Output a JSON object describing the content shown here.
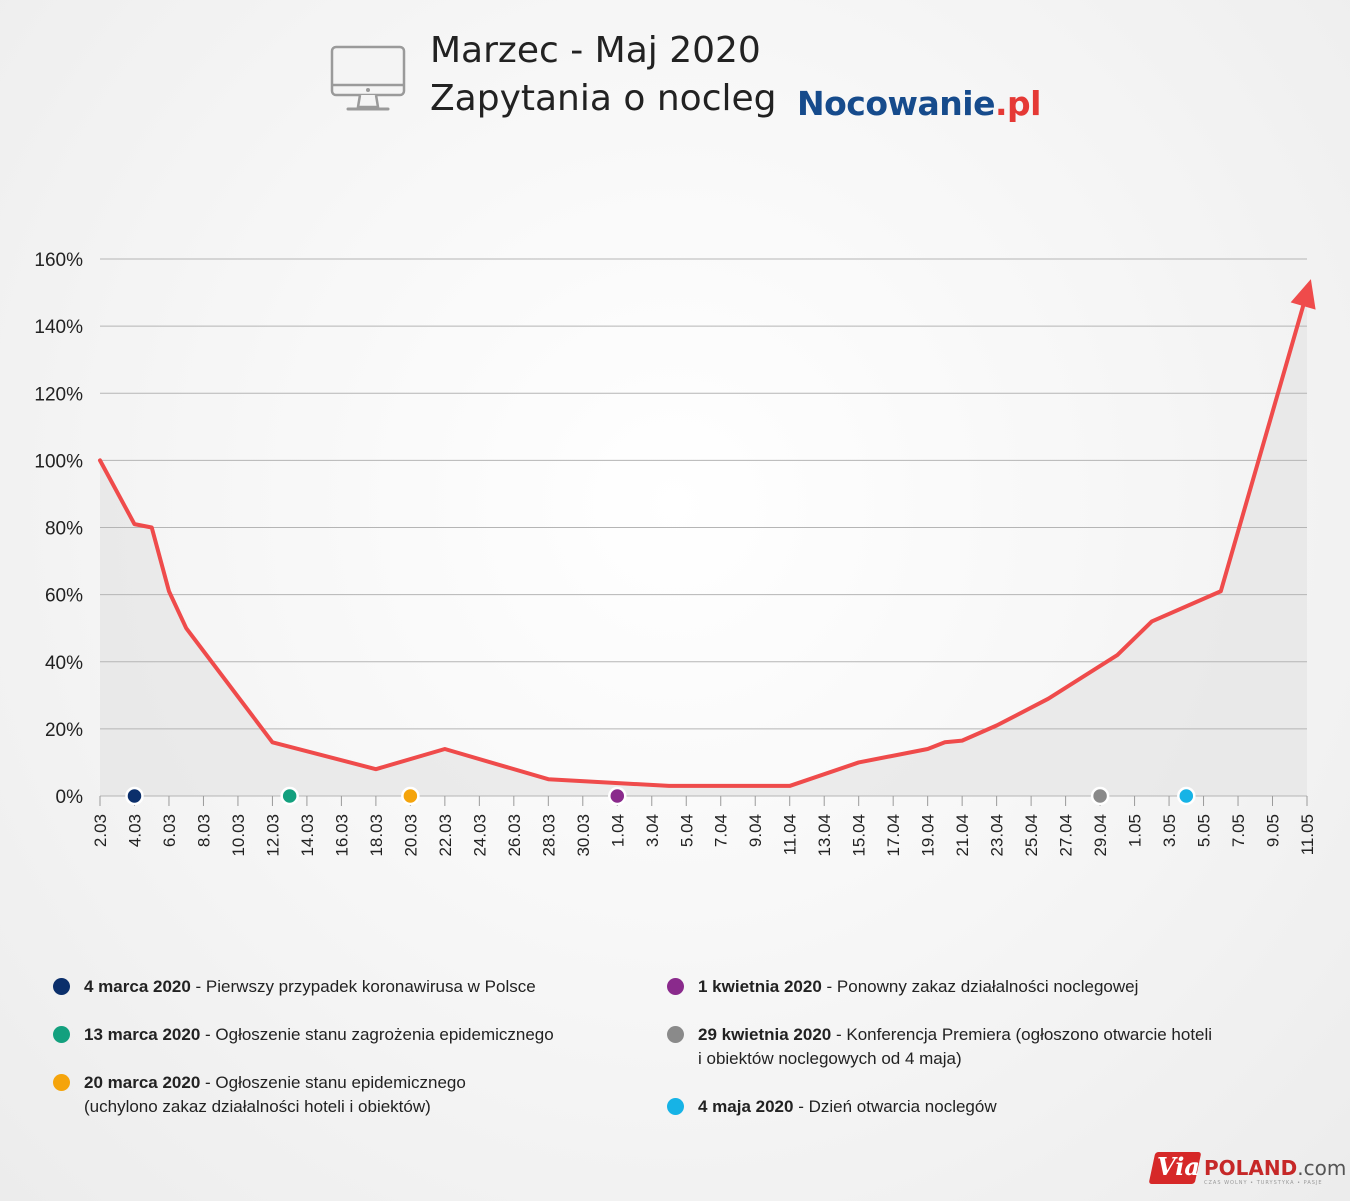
{
  "header": {
    "title_line1": "Marzec - Maj 2020",
    "title_line2": "Zapytania o nocleg",
    "brand_main": "Nocowanie",
    "brand_tld": ".pl",
    "icon": "monitor-icon"
  },
  "colors": {
    "line": "#ef4b4b",
    "grid": "#b5b5b5",
    "area": "#e6e6e6"
  },
  "chart_data": {
    "type": "line",
    "title": "Zapytania o nocleg",
    "x_tick_labels": [
      "2.03",
      "4.03",
      "6.03",
      "8.03",
      "10.03",
      "12.03",
      "14.03",
      "16.03",
      "18.03",
      "20.03",
      "22.03",
      "24.03",
      "26.03",
      "28.03",
      "30.03",
      "1.04",
      "3.04",
      "5.04",
      "7.04",
      "9.04",
      "11.04",
      "13.04",
      "15.04",
      "17.04",
      "19.04",
      "21.04",
      "23.04",
      "25.04",
      "27.04",
      "29.04",
      "1.05",
      "3.05",
      "5.05",
      "7.05",
      "9.05",
      "11.05"
    ],
    "y_ticks": [
      0,
      20,
      40,
      60,
      80,
      100,
      120,
      140,
      160
    ],
    "y_tick_labels": [
      "0%",
      "20%",
      "40%",
      "60%",
      "80%",
      "100%",
      "120%",
      "140%",
      "160%"
    ],
    "ylim": [
      0,
      160
    ],
    "grid": true,
    "series": [
      {
        "points": [
          {
            "date": "2020-03-02",
            "value": 100
          },
          {
            "date": "2020-03-04",
            "value": 81
          },
          {
            "date": "2020-03-05",
            "value": 80
          },
          {
            "date": "2020-03-06",
            "value": 61
          },
          {
            "date": "2020-03-07",
            "value": 50
          },
          {
            "date": "2020-03-12",
            "value": 16
          },
          {
            "date": "2020-03-18",
            "value": 8
          },
          {
            "date": "2020-03-22",
            "value": 14
          },
          {
            "date": "2020-03-28",
            "value": 5
          },
          {
            "date": "2020-04-04",
            "value": 3
          },
          {
            "date": "2020-04-11",
            "value": 3
          },
          {
            "date": "2020-04-15",
            "value": 10
          },
          {
            "date": "2020-04-19",
            "value": 14
          },
          {
            "date": "2020-04-20",
            "value": 16
          },
          {
            "date": "2020-04-21",
            "value": 16.5
          },
          {
            "date": "2020-04-23",
            "value": 21
          },
          {
            "date": "2020-04-26",
            "value": 29
          },
          {
            "date": "2020-04-30",
            "value": 42
          },
          {
            "date": "2020-05-02",
            "value": 52
          },
          {
            "date": "2020-05-06",
            "value": 61
          },
          {
            "date": "2020-05-11",
            "value": 150
          }
        ]
      }
    ],
    "event_markers": [
      {
        "date": "2020-03-04",
        "color": "#0b2f6b"
      },
      {
        "date": "2020-03-13",
        "color": "#13a07e"
      },
      {
        "date": "2020-03-20",
        "color": "#f5a40b"
      },
      {
        "date": "2020-04-01",
        "color": "#8a2a8c"
      },
      {
        "date": "2020-04-29",
        "color": "#8a8a8a"
      },
      {
        "date": "2020-05-04",
        "color": "#16b3e6"
      }
    ]
  },
  "legend": [
    {
      "color": "#0b2f6b",
      "date": "4 marca 2020",
      "text": " - Pierwszy przypadek koronawirusa w Polsce",
      "text2": ""
    },
    {
      "color": "#13a07e",
      "date": "13 marca 2020",
      "text": " - Ogłoszenie stanu zagrożenia epidemicznego",
      "text2": ""
    },
    {
      "color": "#f5a40b",
      "date": "20 marca 2020",
      "text": " - Ogłoszenie stanu epidemicznego",
      "text2": "(uchylono zakaz działalności hoteli i obiektów)"
    },
    {
      "color": "#8a2a8c",
      "date": "1 kwietnia 2020",
      "text": " - Ponowny zakaz działalności noclegowej",
      "text2": ""
    },
    {
      "color": "#8a8a8a",
      "date": "29 kwietnia 2020",
      "text": " - Konferencja Premiera (ogłoszono otwarcie hoteli",
      "text2": "i obiektów noclegowych od 4 maja)"
    },
    {
      "color": "#16b3e6",
      "date": "4 maja 2020",
      "text": " - Dzień otwarcia noclegów",
      "text2": ""
    }
  ],
  "footer_logo": {
    "via": "Via",
    "poland": "POLAND",
    "com": ".com",
    "tagline": "CZAS WOLNY • TURYSTYKA • PASJE"
  }
}
